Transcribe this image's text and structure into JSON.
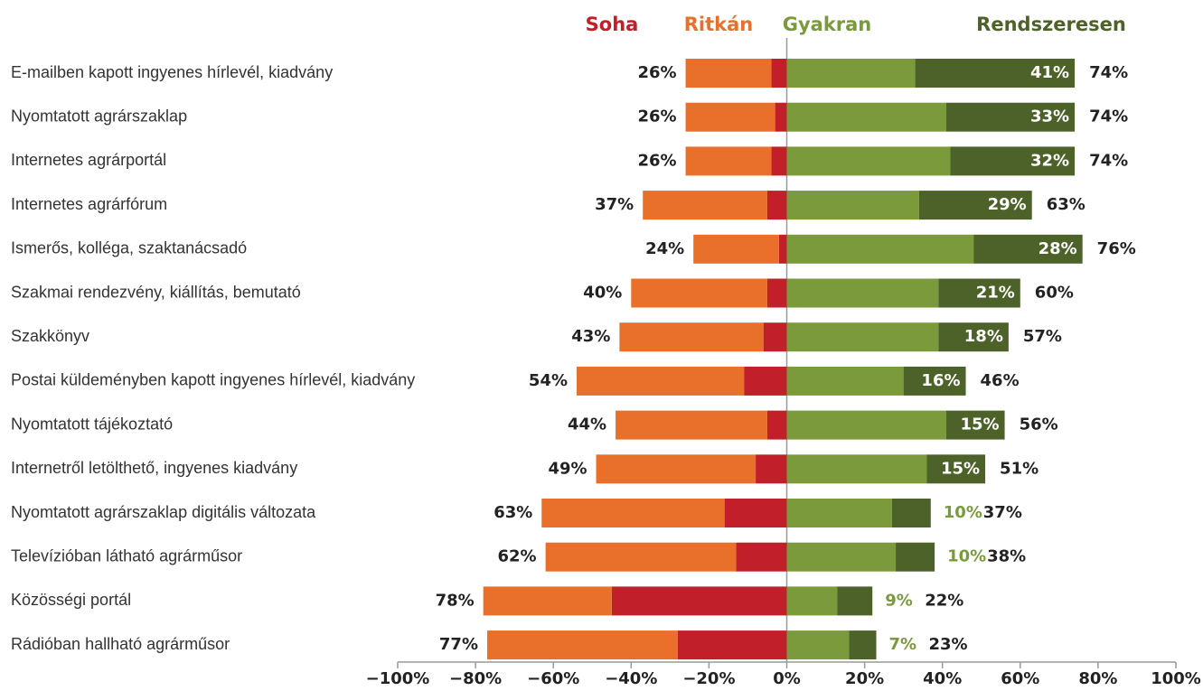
{
  "chart_data": {
    "type": "diverging_stacked_bar",
    "categories": [
      "E-mailben kapott ingyenes hírlevél, kiadvány",
      "Nyomtatott agrárszaklap",
      "Internetes agrárportál",
      "Internetes agrárfórum",
      "Ismerős, kolléga, szaktanácsadó",
      "Szakmai rendezvény, kiállítás, bemutató",
      "Szakkönyv",
      "Postai küldeményben kapott ingyenes hírlevél, kiadvány",
      "Nyomtatott tájékoztató",
      "Internetről letölthető, ingyenes kiadvány",
      "Nyomtatott agrárszaklap digitális változata",
      "Televízióban látható agrárműsor",
      "Közösségi portál",
      "Rádióban hallható agrárműsor"
    ],
    "series": [
      {
        "name": "Soha",
        "color": "#c1202b",
        "values": [
          -4,
          -3,
          -4,
          -5,
          -2,
          -5,
          -6,
          -11,
          -5,
          -8,
          -16,
          -13,
          -45,
          -28
        ]
      },
      {
        "name": "Ritkán",
        "color": "#e8702b",
        "values": [
          -22,
          -23,
          -22,
          -32,
          -22,
          -35,
          -37,
          -43,
          -39,
          -41,
          -47,
          -49,
          -33,
          -49
        ]
      },
      {
        "name": "Gyakran",
        "color": "#7a9a3b",
        "values": [
          33,
          41,
          42,
          34,
          48,
          39,
          39,
          30,
          41,
          36,
          27,
          28,
          13,
          16
        ]
      },
      {
        "name": "Rendszeresen",
        "color": "#4d6229",
        "values": [
          41,
          33,
          32,
          29,
          28,
          21,
          18,
          16,
          15,
          15,
          10,
          10,
          9,
          7
        ],
        "value_labels": [
          "41%",
          "33%",
          "32%",
          "29%",
          "28%",
          "21%",
          "18%",
          "16%",
          "15%",
          "15%",
          "10%",
          "10%",
          "9%",
          "7%"
        ]
      }
    ],
    "left_totals": {
      "values": [
        -26,
        -26,
        -26,
        -37,
        -24,
        -40,
        -43,
        -54,
        -44,
        -49,
        -63,
        -62,
        -78,
        -77
      ],
      "value_labels": [
        "26%",
        "26%",
        "26%",
        "37%",
        "24%",
        "40%",
        "43%",
        "54%",
        "44%",
        "49%",
        "63%",
        "62%",
        "78%",
        "77%"
      ]
    },
    "right_totals": {
      "values": [
        74,
        74,
        74,
        63,
        76,
        60,
        57,
        46,
        56,
        51,
        37,
        38,
        22,
        23
      ],
      "value_labels": [
        "74%",
        "74%",
        "74%",
        "63%",
        "76%",
        "60%",
        "57%",
        "46%",
        "56%",
        "51%",
        "37%",
        "38%",
        "22%",
        "23%"
      ]
    },
    "xlim": [
      -100,
      100
    ],
    "xticks": [
      {
        "value": -100,
        "label": "−100%"
      },
      {
        "value": -80,
        "label": "−80%"
      },
      {
        "value": -60,
        "label": "−60%"
      },
      {
        "value": -40,
        "label": "−40%"
      },
      {
        "value": -20,
        "label": "−20%"
      },
      {
        "value": 0,
        "label": "0%"
      },
      {
        "value": 20,
        "label": "20%"
      },
      {
        "value": 40,
        "label": "40%"
      },
      {
        "value": 60,
        "label": "60%"
      },
      {
        "value": 80,
        "label": "80%"
      },
      {
        "value": 100,
        "label": "100%"
      }
    ]
  }
}
